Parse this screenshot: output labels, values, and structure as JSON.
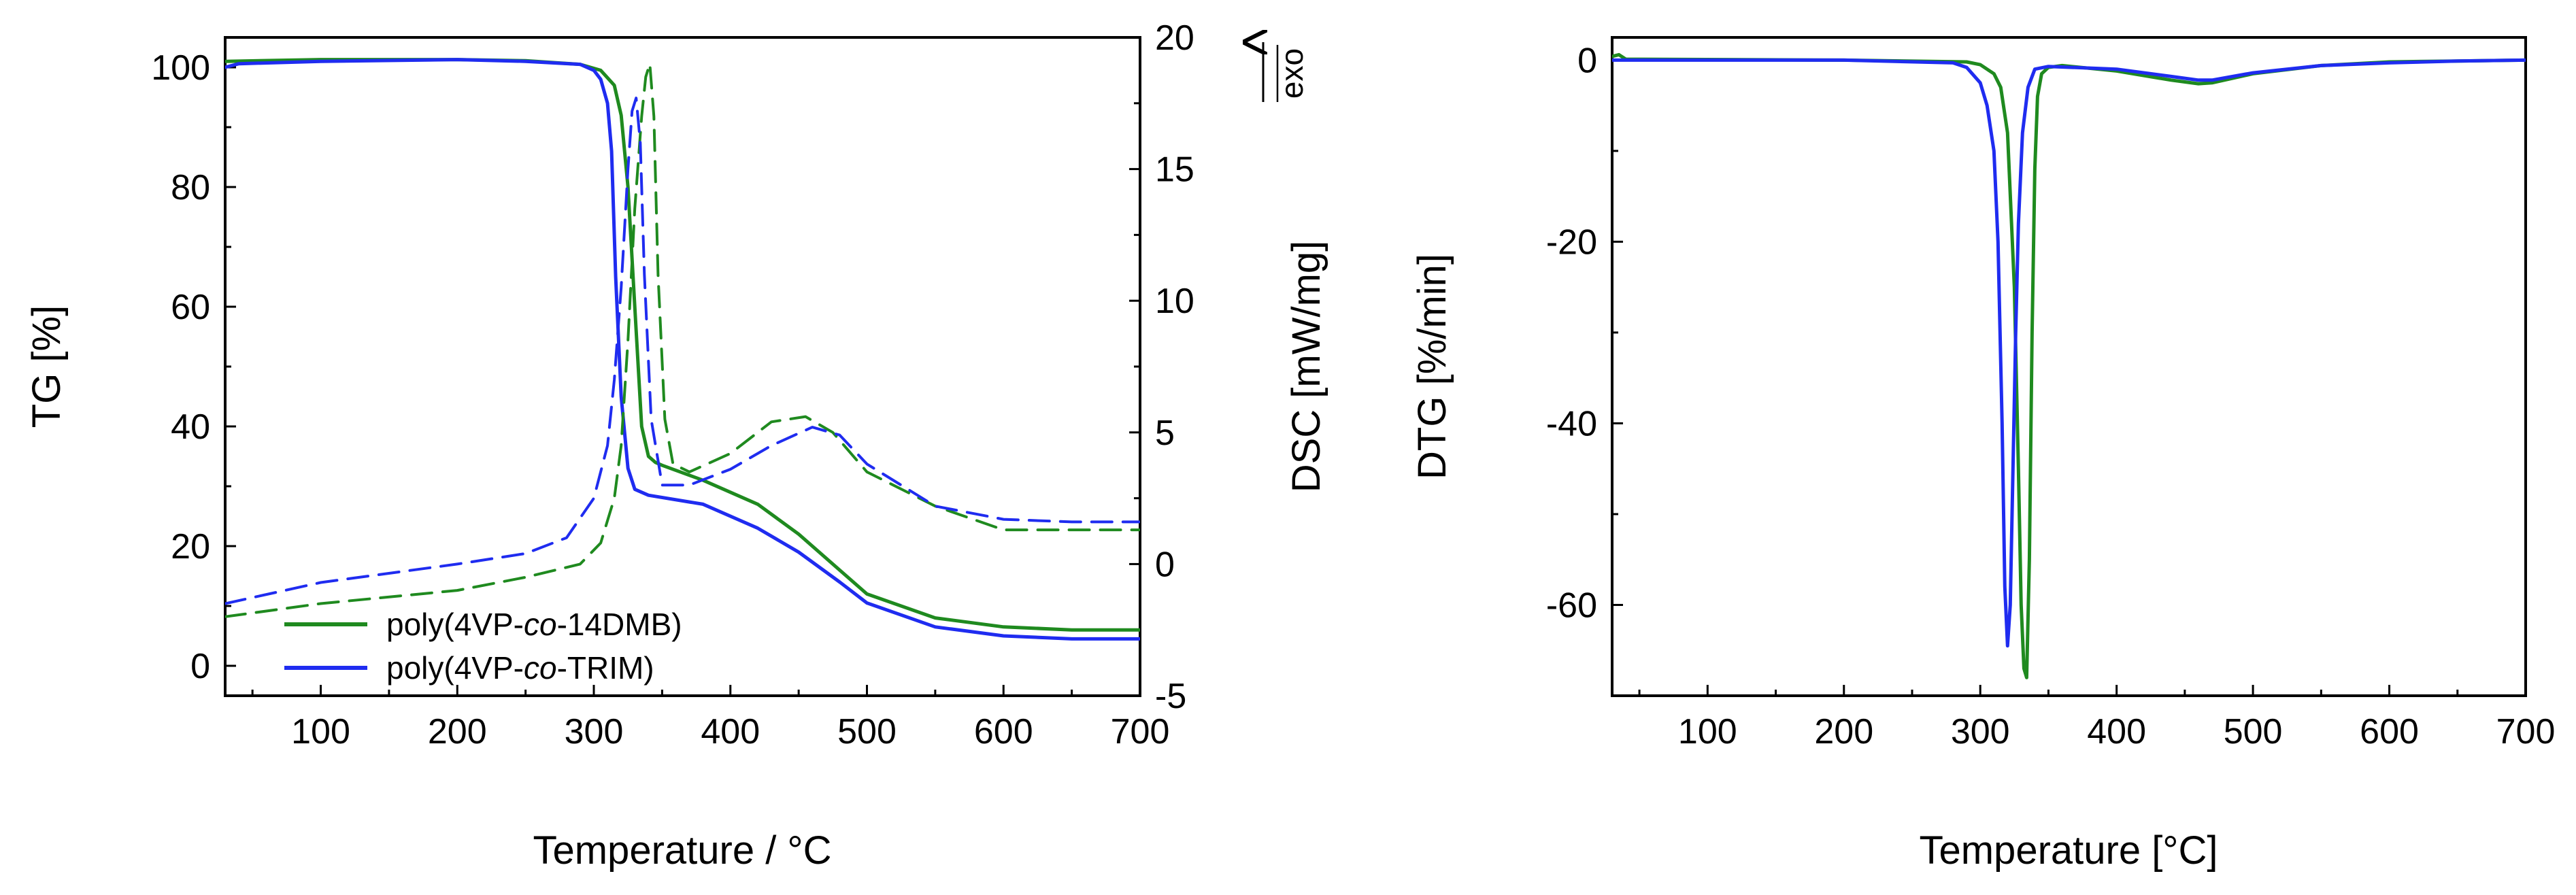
{
  "colors": {
    "green": "#1f8a1f",
    "blue": "#1f2cf0",
    "axis": "#000000"
  },
  "legend": {
    "green_prefix": "poly(4VP-",
    "green_italic": "co",
    "green_suffix": "-14DMB)",
    "blue_prefix": "poly(4VP-",
    "blue_italic": "co",
    "blue_suffix": "-TRIM)"
  },
  "chart_data": [
    {
      "type": "line",
      "title": "",
      "xlabel": "Temperature / °C",
      "ylabel": "TG  [%]",
      "y2label": "DSC  [mW/mg]",
      "exo_label": "exo",
      "xlim": [
        30,
        700
      ],
      "ylim": [
        -5,
        105
      ],
      "y2lim": [
        -5,
        20
      ],
      "xticks": [
        100,
        200,
        300,
        400,
        500,
        600,
        700
      ],
      "yticks": [
        0,
        20,
        40,
        60,
        80,
        100
      ],
      "y2ticks": [
        -5,
        0,
        5,
        10,
        15,
        20
      ],
      "series": [
        {
          "name": "poly(4VP-co-14DMB)",
          "axis": "TG",
          "color": "#1f8a1f",
          "dash": false,
          "x": [
            30,
            100,
            200,
            250,
            290,
            305,
            315,
            320,
            325,
            330,
            335,
            340,
            345,
            350,
            380,
            420,
            450,
            480,
            500,
            550,
            600,
            650,
            700
          ],
          "y": [
            101,
            101.3,
            101.3,
            101.1,
            100.5,
            99.5,
            97,
            92,
            80,
            60,
            40,
            35,
            34,
            33.5,
            31,
            27,
            22,
            16,
            12,
            8,
            6.5,
            6,
            6
          ]
        },
        {
          "name": "poly(4VP-co-TRIM)",
          "axis": "TG",
          "color": "#1f2cf0",
          "dash": false,
          "x": [
            30,
            40,
            100,
            200,
            250,
            290,
            300,
            305,
            310,
            313,
            316,
            320,
            325,
            330,
            340,
            380,
            420,
            450,
            480,
            500,
            550,
            600,
            650,
            700
          ],
          "y": [
            100,
            100.6,
            101,
            101.3,
            101,
            100.5,
            99.5,
            98,
            94,
            86,
            65,
            45,
            33,
            29.5,
            28.5,
            27,
            23,
            19,
            14,
            10.5,
            6.5,
            5,
            4.5,
            4.5
          ]
        },
        {
          "name": "poly(4VP-co-14DMB) DSC",
          "axis": "DSC",
          "color": "#1f8a1f",
          "dash": true,
          "x": [
            30,
            100,
            200,
            250,
            290,
            305,
            315,
            320,
            325,
            330,
            335,
            338,
            341,
            344,
            347,
            352,
            358,
            370,
            400,
            430,
            455,
            475,
            500,
            550,
            600,
            650,
            700
          ],
          "y": [
            -2,
            -1.5,
            -1,
            -0.5,
            0,
            0.8,
            2.5,
            4.5,
            8.5,
            13.5,
            17,
            18.5,
            19,
            17,
            11,
            5.5,
            3.8,
            3.5,
            4.2,
            5.4,
            5.6,
            5.0,
            3.5,
            2.2,
            1.3,
            1.3,
            1.3
          ]
        },
        {
          "name": "poly(4VP-co-TRIM) DSC",
          "axis": "DSC",
          "color": "#1f2cf0",
          "dash": true,
          "x": [
            30,
            100,
            200,
            250,
            280,
            300,
            310,
            315,
            320,
            325,
            328,
            331,
            334,
            337,
            342,
            350,
            370,
            400,
            430,
            460,
            480,
            500,
            550,
            600,
            650,
            700
          ],
          "y": [
            -1.5,
            -0.7,
            0,
            0.4,
            1,
            2.5,
            4.5,
            7,
            10.5,
            15,
            17.2,
            17.7,
            16,
            11,
            5.5,
            3,
            3,
            3.6,
            4.5,
            5.2,
            4.9,
            3.8,
            2.2,
            1.7,
            1.6,
            1.6
          ]
        }
      ]
    },
    {
      "type": "line",
      "title": "",
      "xlabel": "Temperature [°C]",
      "ylabel": "DTG  [%/min]",
      "xlim": [
        30,
        700
      ],
      "ylim": [
        -70,
        2.5
      ],
      "xticks": [
        100,
        200,
        300,
        400,
        500,
        600,
        700
      ],
      "yticks": [
        0,
        -20,
        -40,
        -60
      ],
      "series": [
        {
          "name": "poly(4VP-co-14DMB)",
          "color": "#1f8a1f",
          "dash": false,
          "x": [
            30,
            35,
            40,
            200,
            290,
            300,
            310,
            315,
            320,
            325,
            328,
            330,
            332,
            334,
            336,
            338,
            340,
            342,
            345,
            350,
            360,
            400,
            440,
            460,
            470,
            500,
            550,
            600,
            650,
            700
          ],
          "y": [
            0.4,
            0.6,
            0.1,
            0,
            -0.2,
            -0.5,
            -1.5,
            -3,
            -8,
            -25,
            -45,
            -60,
            -67,
            -68,
            -55,
            -30,
            -12,
            -4,
            -1.5,
            -0.8,
            -0.6,
            -1.2,
            -2.2,
            -2.6,
            -2.5,
            -1.5,
            -0.6,
            -0.2,
            -0.1,
            0
          ]
        },
        {
          "name": "poly(4VP-co-TRIM)",
          "color": "#1f2cf0",
          "dash": false,
          "x": [
            30,
            200,
            280,
            290,
            300,
            305,
            310,
            313,
            316,
            318,
            320,
            322,
            324,
            326,
            328,
            331,
            335,
            340,
            350,
            400,
            440,
            460,
            470,
            500,
            550,
            600,
            650,
            700
          ],
          "y": [
            0,
            0,
            -0.3,
            -0.8,
            -2.5,
            -5,
            -10,
            -20,
            -40,
            -58,
            -64.5,
            -60,
            -45,
            -30,
            -18,
            -8,
            -3,
            -1,
            -0.7,
            -1.0,
            -1.8,
            -2.2,
            -2.2,
            -1.4,
            -0.6,
            -0.3,
            -0.1,
            0
          ]
        }
      ]
    }
  ]
}
